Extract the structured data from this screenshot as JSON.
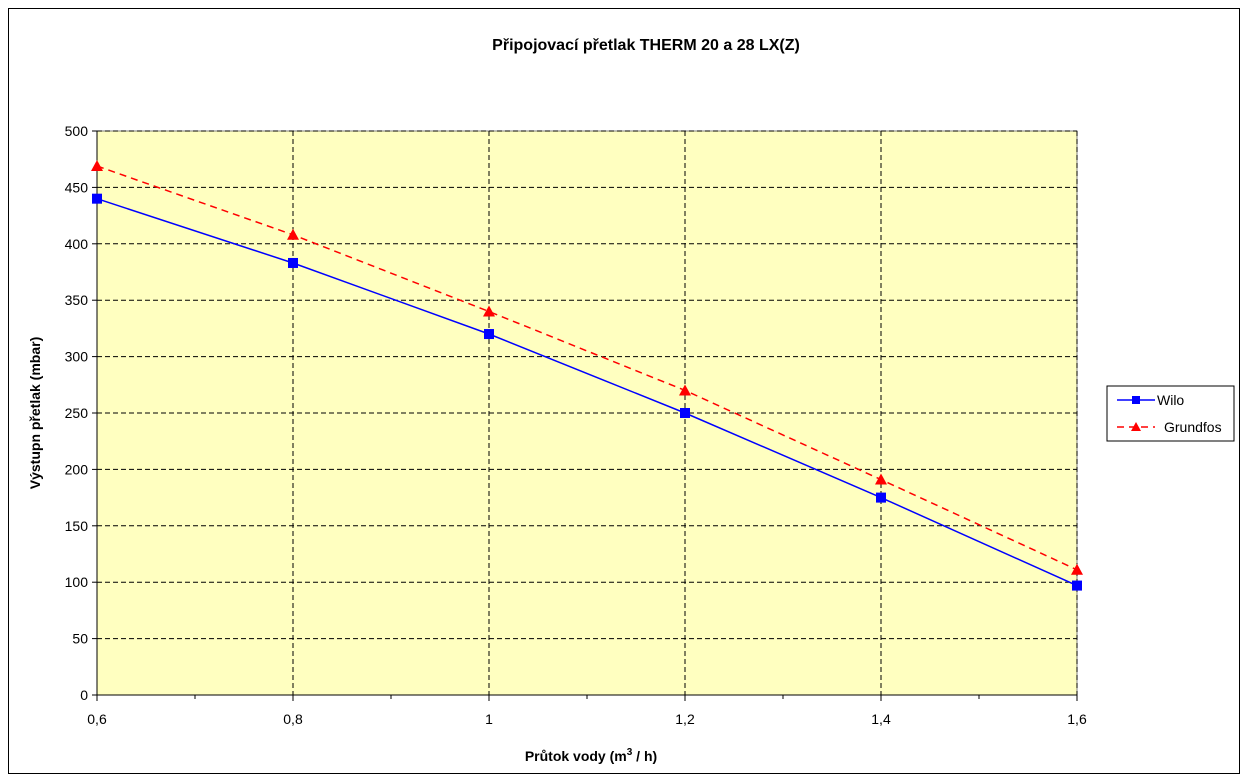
{
  "chart_data": {
    "type": "line",
    "title": "Připojovací přetlak THERM 20 a 28 LX(Z)",
    "xlabel": "Průtok vody (m³ / h)",
    "xlabel_main": "Průtok vody (m",
    "xlabel_sup": "3",
    "xlabel_tail": " / h)",
    "ylabel": "Výstupn přetlak (mbar)",
    "xlim": [
      0.6,
      1.6
    ],
    "ylim": [
      0,
      500
    ],
    "x_ticks": [
      0.6,
      0.8,
      1.0,
      1.2,
      1.4,
      1.6
    ],
    "x_tick_labels": [
      "0,6",
      "0,8",
      "1",
      "1,2",
      "1,4",
      "1,6"
    ],
    "x_minor_ticks": [
      0.7,
      0.9,
      1.1,
      1.3,
      1.5
    ],
    "y_ticks": [
      0,
      50,
      100,
      150,
      200,
      250,
      300,
      350,
      400,
      450,
      500
    ],
    "y_tick_labels": [
      "0",
      "50",
      "100",
      "150",
      "200",
      "250",
      "300",
      "350",
      "400",
      "450",
      "500"
    ],
    "grid": true,
    "plot_background": "#FFFFC0",
    "legend_position": "right",
    "x": [
      0.6,
      0.8,
      1.0,
      1.2,
      1.4,
      1.6
    ],
    "series": [
      {
        "name": "Wilo",
        "values": [
          440,
          383,
          320,
          250,
          175,
          97
        ],
        "color": "#0000FF",
        "line_style": "solid",
        "marker": "square"
      },
      {
        "name": "Grundfos",
        "values": [
          469,
          408,
          340,
          270,
          191,
          111
        ],
        "color": "#FF0000",
        "line_style": "dashed",
        "marker": "triangle"
      }
    ]
  }
}
